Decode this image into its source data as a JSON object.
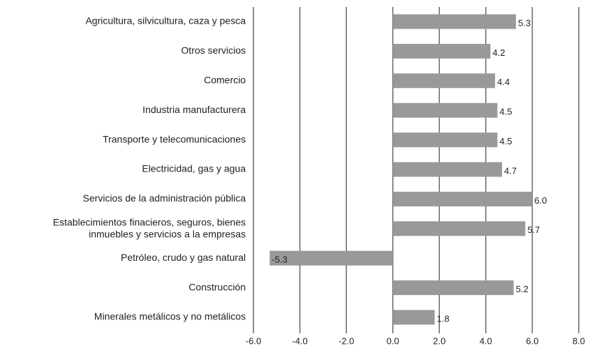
{
  "chart_data": {
    "type": "hbar",
    "categories": [
      "Agricultura, silvicultura, caza y pesca",
      "Otros servicios",
      "Comercio",
      "Industria manufacturera",
      "Transporte y telecomunicaciones",
      "Electricidad, gas y agua",
      "Servicios de la administración pública",
      "Establecimientos finacieros, seguros, bienes\ninmuebles y servicios a la empresas",
      "Petróleo, crudo y gas natural",
      "Construcción",
      "Minerales metálicos y no metálicos"
    ],
    "values": [
      5.3,
      4.2,
      4.4,
      4.5,
      4.5,
      4.7,
      6.0,
      5.7,
      -5.3,
      5.2,
      1.8
    ],
    "value_labels": [
      "5.3",
      "4.2",
      "4.4",
      "4.5",
      "4.5",
      "4.7",
      "6.0",
      "5.7",
      "-5.3",
      "5.2",
      "1.8"
    ],
    "color": "#999999",
    "xlim": [
      -6,
      8
    ],
    "xticks": [
      {
        "value": -6,
        "label": "-6.0"
      },
      {
        "value": -4,
        "label": "-4.0"
      },
      {
        "value": -2,
        "label": "-2.0"
      },
      {
        "value": 0,
        "label": "0.0"
      },
      {
        "value": 2,
        "label": "2.0"
      },
      {
        "value": 4,
        "label": "4.0"
      },
      {
        "value": 6,
        "label": "6.0"
      },
      {
        "value": 8,
        "label": "8.0"
      }
    ],
    "grid": true
  }
}
